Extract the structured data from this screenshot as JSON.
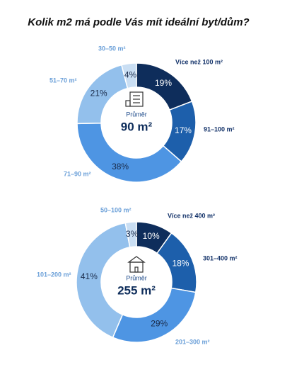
{
  "title": "Kolik m2 má podle Vás mít ideální byt/dům?",
  "chart_data": [
    {
      "type": "pie",
      "categories": [
        "Více než 100 m²",
        "91–100 m²",
        "71–90 m²",
        "51–70 m²",
        "30–50 m²"
      ],
      "values": [
        19,
        17,
        38,
        21,
        4
      ],
      "value_labels": [
        "19%",
        "17%",
        "38%",
        "21%",
        "4%"
      ],
      "colors": [
        "#0e2d5b",
        "#1d5fab",
        "#4e95e3",
        "#93c0ec",
        "#c9def3"
      ],
      "center_label": "Průměr",
      "average_label": "90 m²"
    },
    {
      "type": "pie",
      "categories": [
        "Více než 400 m²",
        "301–400 m²",
        "201–300 m²",
        "101–200 m²",
        "50–100 m²"
      ],
      "values": [
        10,
        18,
        29,
        41,
        3
      ],
      "value_labels": [
        "10%",
        "18%",
        "29%",
        "41%",
        "3%"
      ],
      "colors": [
        "#0e2d5b",
        "#1d5fab",
        "#4e95e3",
        "#93c0ec",
        "#c9def3"
      ],
      "center_label": "Průměr",
      "average_label": "255 m²"
    }
  ]
}
